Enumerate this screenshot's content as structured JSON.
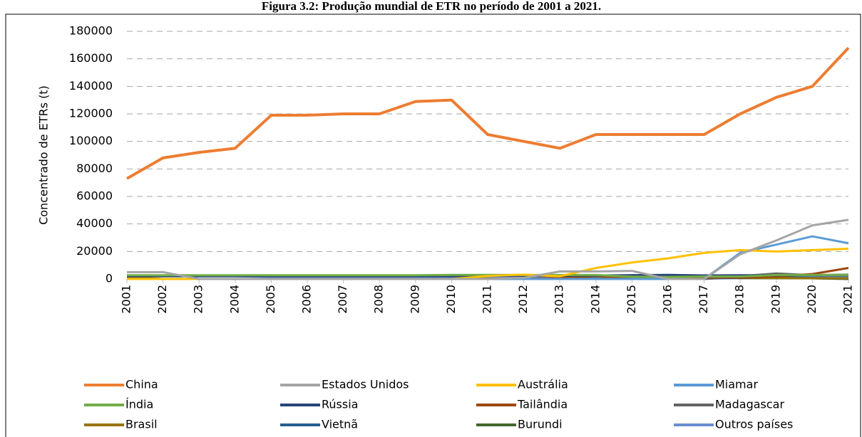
{
  "chart_data": {
    "type": "line",
    "title": "Figura 3.2: Produção mundial de ETR no período de 2001 a 2021.",
    "ylabel": "Concentrado de ETRs (t)",
    "categories": [
      "2001",
      "2002",
      "2003",
      "2004",
      "2005",
      "2006",
      "2007",
      "2008",
      "2009",
      "2010",
      "2011",
      "2012",
      "2013",
      "2014",
      "2015",
      "2016",
      "2017",
      "2018",
      "2019",
      "2020",
      "2021"
    ],
    "ylim": [
      0,
      180000
    ],
    "yticks": [
      0,
      20000,
      40000,
      60000,
      80000,
      100000,
      120000,
      140000,
      160000,
      180000
    ],
    "grid": true,
    "legend": "bottom",
    "series": [
      {
        "name": "China",
        "color": "#ED7D31",
        "values": [
          73000,
          88000,
          92000,
          95000,
          119000,
          119000,
          120000,
          120000,
          129000,
          130000,
          105000,
          100000,
          95000,
          105000,
          105000,
          105000,
          105000,
          120000,
          132000,
          140000,
          168000
        ]
      },
      {
        "name": "Estados Unidos",
        "color": "#A5A5A5",
        "values": [
          5000,
          5000,
          0,
          0,
          0,
          0,
          0,
          0,
          0,
          0,
          0,
          800,
          5500,
          5500,
          5900,
          0,
          0,
          18000,
          28000,
          39000,
          43000
        ]
      },
      {
        "name": "Austrália",
        "color": "#FFC000",
        "values": [
          0,
          0,
          0,
          0,
          0,
          0,
          0,
          0,
          0,
          0,
          2200,
          3200,
          2000,
          8000,
          12000,
          15000,
          19000,
          21000,
          20000,
          21000,
          22000
        ]
      },
      {
        "name": "Miamar",
        "color": "#5B9BD5",
        "values": [
          0,
          0,
          0,
          0,
          0,
          0,
          0,
          0,
          0,
          0,
          0,
          0,
          0,
          0,
          0,
          0,
          0,
          19000,
          25000,
          31000,
          26000
        ]
      },
      {
        "name": "Índia",
        "color": "#70AD47",
        "values": [
          2700,
          2700,
          2700,
          2700,
          2700,
          2700,
          2700,
          2700,
          2700,
          3000,
          3000,
          2900,
          2900,
          2900,
          1700,
          1500,
          1800,
          1800,
          2900,
          2900,
          2900
        ]
      },
      {
        "name": "Rússia",
        "color": "#264478",
        "values": [
          2000,
          2000,
          2000,
          2000,
          2000,
          2000,
          2000,
          2000,
          2000,
          2000,
          2400,
          2400,
          2400,
          2500,
          2800,
          3000,
          2600,
          2700,
          2700,
          2700,
          2600
        ]
      },
      {
        "name": "Tailândia",
        "color": "#9E480E",
        "values": [
          0,
          0,
          0,
          0,
          0,
          0,
          0,
          0,
          0,
          0,
          0,
          0,
          800,
          2100,
          760,
          1600,
          1300,
          1000,
          1900,
          3600,
          8000
        ]
      },
      {
        "name": "Madagascar",
        "color": "#636363",
        "values": [
          0,
          0,
          0,
          0,
          0,
          0,
          0,
          0,
          0,
          0,
          0,
          0,
          0,
          0,
          0,
          0,
          0,
          2000,
          4000,
          2800,
          3200
        ]
      },
      {
        "name": "Brasil",
        "color": "#997300",
        "values": [
          1400,
          0,
          0,
          0,
          0,
          0,
          0,
          0,
          0,
          0,
          250,
          140,
          330,
          0,
          880,
          1700,
          1700,
          1100,
          710,
          600,
          500
        ]
      },
      {
        "name": "Vietnã",
        "color": "#255E91",
        "values": [
          0,
          0,
          0,
          0,
          0,
          0,
          0,
          0,
          0,
          0,
          0,
          200,
          220,
          200,
          250,
          300,
          200,
          920,
          1300,
          700,
          400
        ]
      },
      {
        "name": "Burundi",
        "color": "#43682B",
        "values": [
          0,
          0,
          0,
          0,
          0,
          0,
          0,
          0,
          0,
          0,
          0,
          0,
          0,
          0,
          0,
          0,
          1000,
          630,
          600,
          500,
          0
        ]
      },
      {
        "name": "Outros países",
        "color": "#698ED0",
        "values": [
          2000,
          2000,
          2000,
          2000,
          1500,
          1500,
          1500,
          1500,
          1500,
          1500,
          1500,
          1500,
          1500,
          1500,
          1500,
          1500,
          1500,
          1500,
          1500,
          1500,
          1500
        ]
      }
    ]
  }
}
